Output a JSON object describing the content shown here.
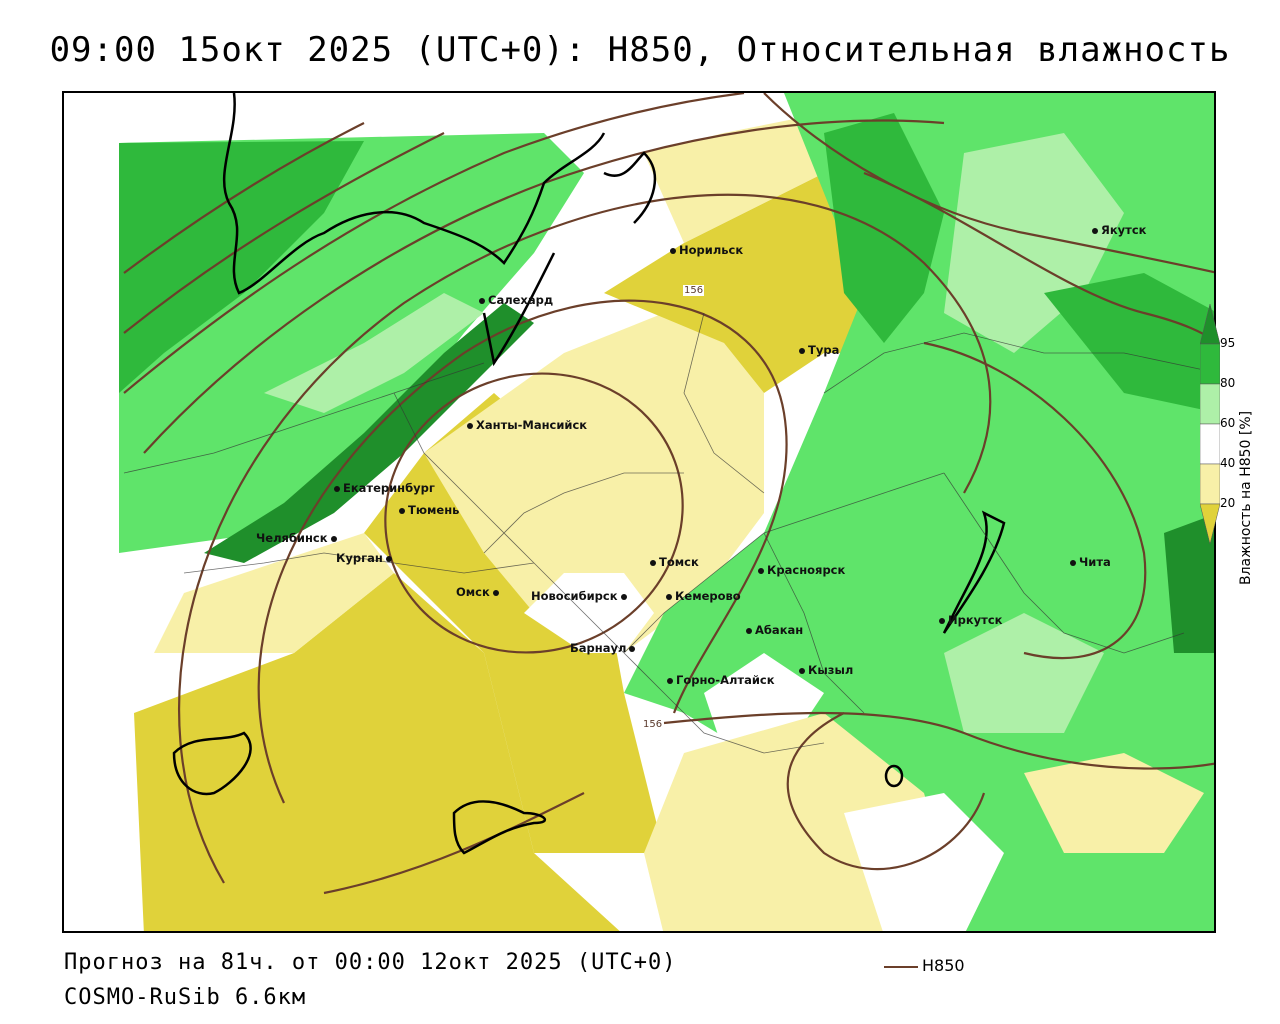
{
  "title": "09:00 15окт 2025 (UTC+0): H850, Относительная влажность",
  "footer": {
    "forecast": "Прогноз на 81ч. от 00:00 12окт 2025 (UTC+0)",
    "model": "COSMO-RuSib 6.6км",
    "contour_legend": "H850"
  },
  "colorbar": {
    "title": "Влажность на H850 [%]",
    "ticks": [
      "95",
      "80",
      "60",
      "40",
      "20"
    ],
    "colors": [
      "#1f8f2b",
      "#2fb93c",
      "#5fe46a",
      "#b3f3b0",
      "#ffffff",
      "#f8f0a8",
      "#e2d43a"
    ]
  },
  "isoline_labels": [
    "156",
    "156"
  ],
  "cities": [
    {
      "name": "Якутск"
    },
    {
      "name": "Норильск"
    },
    {
      "name": "Салехард"
    },
    {
      "name": "Тура"
    },
    {
      "name": "Ханты-Мансийск"
    },
    {
      "name": "Екатеринбург"
    },
    {
      "name": "Тюмень"
    },
    {
      "name": "Челябинск"
    },
    {
      "name": "Курган"
    },
    {
      "name": "Томск"
    },
    {
      "name": "Красноярск"
    },
    {
      "name": "Омск"
    },
    {
      "name": "Новосибирск"
    },
    {
      "name": "Кемерово"
    },
    {
      "name": "Абакан"
    },
    {
      "name": "Барнаул"
    },
    {
      "name": "Горно-Алтайск"
    },
    {
      "name": "Кызыл"
    },
    {
      "name": "Иркутск"
    },
    {
      "name": "Чита"
    }
  ],
  "colors": {
    "dark_green": "#1f8f2b",
    "green": "#35c443",
    "light_green": "#aef0a8",
    "yellow": "#e0d23a",
    "light_yellow": "#f8f0a8",
    "contour": "#6b3f2a"
  }
}
